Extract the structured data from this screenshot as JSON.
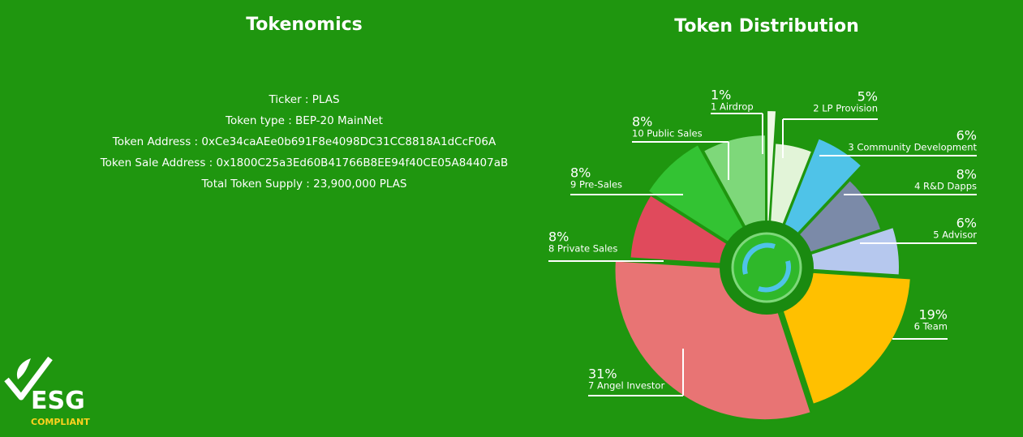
{
  "tokenomics": {
    "title": "Tokenomics",
    "lines": [
      "Ticker : PLAS",
      "Token type : BEP-20 MainNet",
      "Token Address : 0xCe34caAEe0b691F8e4098DC31CC8818A1dCcF06A",
      "Token Sale Address : 0x1800C25a3Ed60B41766B8EE94f40CE05A84407aB",
      "Total Token Supply : 23,900,000 PLAS"
    ]
  },
  "chart_data": {
    "type": "pie",
    "title": "Token Distribution",
    "categories": [
      "1 Airdrop",
      "2 LP Provision",
      "3 Community Development",
      "4 R&D Dapps",
      "5 Advisor",
      "6 Team",
      "7 Angel Investor",
      "8 Private Sales",
      "9 Pre-Sales",
      "10 Public Sales"
    ],
    "values": [
      1,
      5,
      6,
      8,
      6,
      19,
      31,
      8,
      8,
      8
    ],
    "value_labels": [
      "1%",
      "5%",
      "6%",
      "8%",
      "6%",
      "19%",
      "31%",
      "8%",
      "8%",
      "8%"
    ],
    "colors": [
      "#eef8e6",
      "#e2f4d8",
      "#4fc3e8",
      "#7b8aa8",
      "#b6c8ee",
      "#ffc000",
      "#e87474",
      "#e04a5c",
      "#33c333",
      "#7ed87a"
    ]
  },
  "badge": {
    "title": "ESG",
    "subtitle": "COMPLIANT"
  }
}
